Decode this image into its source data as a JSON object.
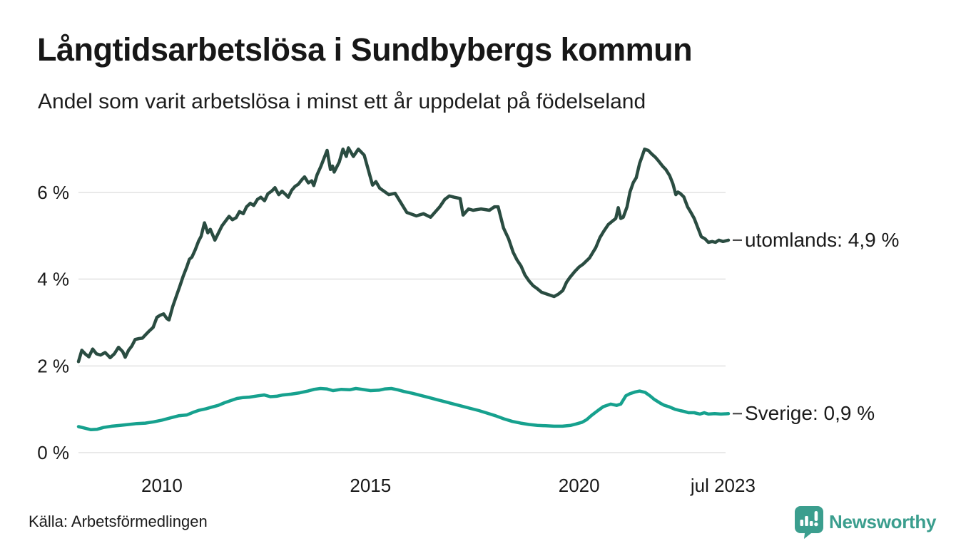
{
  "header": {
    "title": "Långtidsarbetslösa i Sundbybergs kommun",
    "subtitle": "Andel som varit arbetslösa i minst ett år uppdelat på födelseland"
  },
  "chart_data": {
    "type": "line",
    "title": "Långtidsarbetslösa i Sundbybergs kommun",
    "subtitle": "Andel som varit arbetslösa i minst ett år uppdelat på födelseland",
    "x_axis": {
      "domain": [
        2008.0,
        2023.58
      ],
      "ticks": [
        {
          "value": 2010,
          "label": "2010"
        },
        {
          "value": 2015,
          "label": "2015"
        },
        {
          "value": 2020,
          "label": "2020"
        },
        {
          "value": 2023.45,
          "label": "jul 2023"
        }
      ]
    },
    "y_axis": {
      "unit": "%",
      "domain": [
        0,
        7.2
      ],
      "gridlines": true,
      "ticks": [
        {
          "value": 0,
          "label": "0 %"
        },
        {
          "value": 2,
          "label": "2 %"
        },
        {
          "value": 4,
          "label": "4 %"
        },
        {
          "value": 6,
          "label": "6 %"
        }
      ]
    },
    "legend_position": "end-of-line-labels-right",
    "series": [
      {
        "name": "utomlands",
        "end_label": "utomlands: 4,9 %",
        "last_value": 4.9,
        "color": "#2a4c41",
        "points": [
          [
            2008.0,
            2.1
          ],
          [
            2008.08,
            2.36
          ],
          [
            2008.17,
            2.27
          ],
          [
            2008.25,
            2.21
          ],
          [
            2008.34,
            2.39
          ],
          [
            2008.43,
            2.28
          ],
          [
            2008.53,
            2.25
          ],
          [
            2008.64,
            2.31
          ],
          [
            2008.76,
            2.19
          ],
          [
            2008.86,
            2.28
          ],
          [
            2008.96,
            2.43
          ],
          [
            2009.06,
            2.33
          ],
          [
            2009.12,
            2.2
          ],
          [
            2009.2,
            2.36
          ],
          [
            2009.28,
            2.46
          ],
          [
            2009.36,
            2.61
          ],
          [
            2009.45,
            2.63
          ],
          [
            2009.53,
            2.64
          ],
          [
            2009.62,
            2.73
          ],
          [
            2009.7,
            2.81
          ],
          [
            2009.79,
            2.89
          ],
          [
            2009.88,
            3.12
          ],
          [
            2009.96,
            3.17
          ],
          [
            2010.04,
            3.2
          ],
          [
            2010.12,
            3.09
          ],
          [
            2010.17,
            3.06
          ],
          [
            2010.26,
            3.37
          ],
          [
            2010.35,
            3.62
          ],
          [
            2010.43,
            3.84
          ],
          [
            2010.51,
            4.07
          ],
          [
            2010.6,
            4.29
          ],
          [
            2010.66,
            4.46
          ],
          [
            2010.72,
            4.51
          ],
          [
            2010.8,
            4.68
          ],
          [
            2010.88,
            4.88
          ],
          [
            2010.94,
            4.99
          ],
          [
            2011.02,
            5.3
          ],
          [
            2011.1,
            5.07
          ],
          [
            2011.16,
            5.15
          ],
          [
            2011.27,
            4.9
          ],
          [
            2011.44,
            5.23
          ],
          [
            2011.61,
            5.45
          ],
          [
            2011.69,
            5.37
          ],
          [
            2011.78,
            5.42
          ],
          [
            2011.86,
            5.56
          ],
          [
            2011.95,
            5.51
          ],
          [
            2012.03,
            5.67
          ],
          [
            2012.12,
            5.75
          ],
          [
            2012.2,
            5.7
          ],
          [
            2012.29,
            5.84
          ],
          [
            2012.37,
            5.89
          ],
          [
            2012.46,
            5.81
          ],
          [
            2012.54,
            5.97
          ],
          [
            2012.63,
            6.03
          ],
          [
            2012.71,
            6.11
          ],
          [
            2012.8,
            5.95
          ],
          [
            2012.88,
            6.03
          ],
          [
            2012.97,
            5.95
          ],
          [
            2013.03,
            5.89
          ],
          [
            2013.11,
            6.05
          ],
          [
            2013.19,
            6.14
          ],
          [
            2013.27,
            6.19
          ],
          [
            2013.36,
            6.3
          ],
          [
            2013.42,
            6.36
          ],
          [
            2013.51,
            6.22
          ],
          [
            2013.59,
            6.27
          ],
          [
            2013.64,
            6.16
          ],
          [
            2013.72,
            6.41
          ],
          [
            2013.81,
            6.6
          ],
          [
            2013.89,
            6.8
          ],
          [
            2013.96,
            6.97
          ],
          [
            2014.04,
            6.53
          ],
          [
            2014.09,
            6.61
          ],
          [
            2014.13,
            6.47
          ],
          [
            2014.25,
            6.7
          ],
          [
            2014.34,
            7.0
          ],
          [
            2014.42,
            6.83
          ],
          [
            2014.47,
            7.03
          ],
          [
            2014.59,
            6.83
          ],
          [
            2014.71,
            7.0
          ],
          [
            2014.85,
            6.86
          ],
          [
            2015.05,
            6.17
          ],
          [
            2015.13,
            6.25
          ],
          [
            2015.22,
            6.1
          ],
          [
            2015.44,
            5.95
          ],
          [
            2015.59,
            5.98
          ],
          [
            2015.87,
            5.54
          ],
          [
            2016.1,
            5.46
          ],
          [
            2016.27,
            5.51
          ],
          [
            2016.44,
            5.43
          ],
          [
            2016.66,
            5.67
          ],
          [
            2016.78,
            5.84
          ],
          [
            2016.89,
            5.92
          ],
          [
            2017.01,
            5.89
          ],
          [
            2017.15,
            5.86
          ],
          [
            2017.22,
            5.48
          ],
          [
            2017.35,
            5.62
          ],
          [
            2017.46,
            5.59
          ],
          [
            2017.65,
            5.62
          ],
          [
            2017.85,
            5.59
          ],
          [
            2017.97,
            5.67
          ],
          [
            2018.06,
            5.67
          ],
          [
            2018.19,
            5.18
          ],
          [
            2018.31,
            4.93
          ],
          [
            2018.42,
            4.62
          ],
          [
            2018.51,
            4.45
          ],
          [
            2018.61,
            4.3
          ],
          [
            2018.7,
            4.1
          ],
          [
            2018.8,
            3.96
          ],
          [
            2018.9,
            3.85
          ],
          [
            2019.0,
            3.78
          ],
          [
            2019.1,
            3.7
          ],
          [
            2019.25,
            3.65
          ],
          [
            2019.4,
            3.6
          ],
          [
            2019.51,
            3.66
          ],
          [
            2019.61,
            3.74
          ],
          [
            2019.7,
            3.93
          ],
          [
            2019.78,
            4.04
          ],
          [
            2019.9,
            4.18
          ],
          [
            2020.0,
            4.28
          ],
          [
            2020.1,
            4.35
          ],
          [
            2020.25,
            4.49
          ],
          [
            2020.4,
            4.73
          ],
          [
            2020.5,
            4.96
          ],
          [
            2020.6,
            5.12
          ],
          [
            2020.7,
            5.26
          ],
          [
            2020.8,
            5.34
          ],
          [
            2020.88,
            5.4
          ],
          [
            2020.94,
            5.65
          ],
          [
            2021.0,
            5.4
          ],
          [
            2021.06,
            5.43
          ],
          [
            2021.15,
            5.67
          ],
          [
            2021.22,
            6.01
          ],
          [
            2021.3,
            6.23
          ],
          [
            2021.37,
            6.34
          ],
          [
            2021.45,
            6.67
          ],
          [
            2021.51,
            6.83
          ],
          [
            2021.57,
            7.0
          ],
          [
            2021.66,
            6.97
          ],
          [
            2021.74,
            6.89
          ],
          [
            2021.83,
            6.81
          ],
          [
            2021.91,
            6.72
          ],
          [
            2022.0,
            6.61
          ],
          [
            2022.08,
            6.53
          ],
          [
            2022.17,
            6.39
          ],
          [
            2022.25,
            6.2
          ],
          [
            2022.32,
            5.95
          ],
          [
            2022.37,
            6.01
          ],
          [
            2022.42,
            5.98
          ],
          [
            2022.51,
            5.9
          ],
          [
            2022.6,
            5.67
          ],
          [
            2022.68,
            5.54
          ],
          [
            2022.76,
            5.4
          ],
          [
            2022.85,
            5.18
          ],
          [
            2022.93,
            4.98
          ],
          [
            2023.02,
            4.93
          ],
          [
            2023.1,
            4.85
          ],
          [
            2023.19,
            4.87
          ],
          [
            2023.27,
            4.85
          ],
          [
            2023.35,
            4.9
          ],
          [
            2023.45,
            4.87
          ],
          [
            2023.58,
            4.9
          ]
        ]
      },
      {
        "name": "Sverige",
        "end_label": "Sverige: 0,9 %",
        "last_value": 0.9,
        "color": "#16a18e",
        "points": [
          [
            2008.0,
            0.6
          ],
          [
            2008.13,
            0.57
          ],
          [
            2008.3,
            0.53
          ],
          [
            2008.45,
            0.54
          ],
          [
            2008.6,
            0.58
          ],
          [
            2008.8,
            0.61
          ],
          [
            2009.0,
            0.63
          ],
          [
            2009.2,
            0.65
          ],
          [
            2009.4,
            0.67
          ],
          [
            2009.6,
            0.68
          ],
          [
            2009.8,
            0.71
          ],
          [
            2010.0,
            0.75
          ],
          [
            2010.2,
            0.8
          ],
          [
            2010.4,
            0.85
          ],
          [
            2010.6,
            0.87
          ],
          [
            2010.75,
            0.93
          ],
          [
            2010.9,
            0.98
          ],
          [
            2011.05,
            1.01
          ],
          [
            2011.2,
            1.05
          ],
          [
            2011.35,
            1.09
          ],
          [
            2011.5,
            1.15
          ],
          [
            2011.65,
            1.2
          ],
          [
            2011.8,
            1.25
          ],
          [
            2011.95,
            1.27
          ],
          [
            2012.1,
            1.28
          ],
          [
            2012.3,
            1.31
          ],
          [
            2012.45,
            1.33
          ],
          [
            2012.6,
            1.29
          ],
          [
            2012.75,
            1.3
          ],
          [
            2012.9,
            1.33
          ],
          [
            2013.1,
            1.35
          ],
          [
            2013.3,
            1.38
          ],
          [
            2013.5,
            1.42
          ],
          [
            2013.65,
            1.46
          ],
          [
            2013.8,
            1.48
          ],
          [
            2013.95,
            1.47
          ],
          [
            2014.1,
            1.43
          ],
          [
            2014.3,
            1.46
          ],
          [
            2014.5,
            1.45
          ],
          [
            2014.65,
            1.48
          ],
          [
            2014.8,
            1.46
          ],
          [
            2015.0,
            1.43
          ],
          [
            2015.2,
            1.44
          ],
          [
            2015.35,
            1.47
          ],
          [
            2015.5,
            1.48
          ],
          [
            2015.65,
            1.45
          ],
          [
            2015.8,
            1.41
          ],
          [
            2016.0,
            1.37
          ],
          [
            2016.2,
            1.32
          ],
          [
            2016.4,
            1.27
          ],
          [
            2016.6,
            1.22
          ],
          [
            2016.8,
            1.17
          ],
          [
            2017.0,
            1.12
          ],
          [
            2017.2,
            1.07
          ],
          [
            2017.4,
            1.02
          ],
          [
            2017.6,
            0.97
          ],
          [
            2017.8,
            0.91
          ],
          [
            2018.0,
            0.85
          ],
          [
            2018.2,
            0.78
          ],
          [
            2018.4,
            0.72
          ],
          [
            2018.6,
            0.68
          ],
          [
            2018.8,
            0.65
          ],
          [
            2019.0,
            0.63
          ],
          [
            2019.2,
            0.62
          ],
          [
            2019.4,
            0.61
          ],
          [
            2019.6,
            0.61
          ],
          [
            2019.8,
            0.63
          ],
          [
            2019.92,
            0.66
          ],
          [
            2020.07,
            0.7
          ],
          [
            2020.18,
            0.76
          ],
          [
            2020.3,
            0.86
          ],
          [
            2020.45,
            0.97
          ],
          [
            2020.58,
            1.06
          ],
          [
            2020.76,
            1.12
          ],
          [
            2020.9,
            1.09
          ],
          [
            2021.0,
            1.12
          ],
          [
            2021.12,
            1.31
          ],
          [
            2021.22,
            1.36
          ],
          [
            2021.35,
            1.4
          ],
          [
            2021.45,
            1.42
          ],
          [
            2021.58,
            1.39
          ],
          [
            2021.7,
            1.31
          ],
          [
            2021.8,
            1.23
          ],
          [
            2021.95,
            1.14
          ],
          [
            2022.05,
            1.09
          ],
          [
            2022.15,
            1.06
          ],
          [
            2022.3,
            1.0
          ],
          [
            2022.42,
            0.97
          ],
          [
            2022.52,
            0.95
          ],
          [
            2022.62,
            0.92
          ],
          [
            2022.76,
            0.92
          ],
          [
            2022.9,
            0.89
          ],
          [
            2023.0,
            0.92
          ],
          [
            2023.1,
            0.89
          ],
          [
            2023.25,
            0.9
          ],
          [
            2023.4,
            0.89
          ],
          [
            2023.58,
            0.9
          ]
        ]
      }
    ]
  },
  "footer": {
    "source": "Källa: Arbetsförmedlingen",
    "brand": "Newsworthy"
  },
  "colors": {
    "series_utomlands": "#2a4c41",
    "series_sverige": "#16a18e",
    "gridline": "#e9e9e9",
    "text": "#1a1a1a",
    "brand_teal": "#3b9e8e",
    "label_connector": "#4a4a4a",
    "background": "#ffffff"
  }
}
